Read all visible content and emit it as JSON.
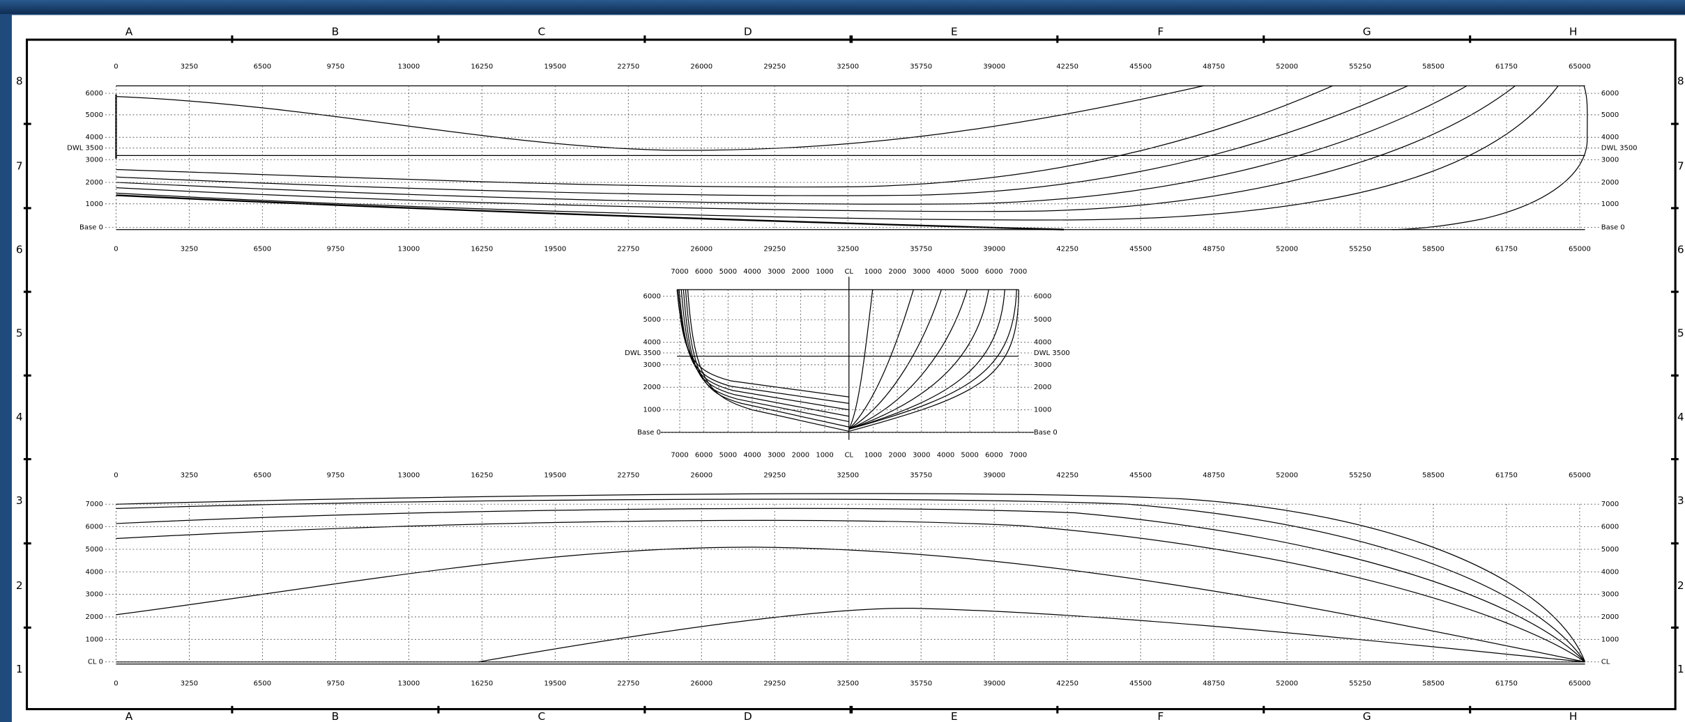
{
  "frame": {
    "columns": [
      "A",
      "B",
      "C",
      "D",
      "E",
      "F",
      "G",
      "H"
    ],
    "rows": [
      8,
      7,
      6,
      5,
      4,
      3,
      2,
      1
    ]
  },
  "stations": [
    0,
    3250,
    6500,
    9750,
    13000,
    16250,
    19500,
    22750,
    26000,
    29250,
    32500,
    35750,
    39000,
    42250,
    45500,
    48750,
    52000,
    55250,
    58500,
    61750,
    65000
  ],
  "profile": {
    "waterlines": [
      "6000",
      "5000",
      "4000",
      "DWL 3500",
      "3000",
      "2000",
      "1000",
      "Base 0"
    ]
  },
  "body_plan": {
    "offsets_left": [
      7000,
      6000,
      5000,
      4000,
      3000,
      2000,
      1000
    ],
    "centerline": "CL",
    "offsets_right": [
      1000,
      2000,
      3000,
      4000,
      5000,
      6000,
      7000
    ],
    "waterlines": [
      "6000",
      "5000",
      "4000",
      "DWL 3500",
      "3000",
      "2000",
      "1000",
      "Base 0"
    ]
  },
  "plan": {
    "labels_left": [
      "7000",
      "6000",
      "5000",
      "4000",
      "3000",
      "2000",
      "1000",
      "CL 0"
    ],
    "labels_right": [
      "7000",
      "6000",
      "5000",
      "4000",
      "3000",
      "2000",
      "1000",
      "CL"
    ]
  }
}
